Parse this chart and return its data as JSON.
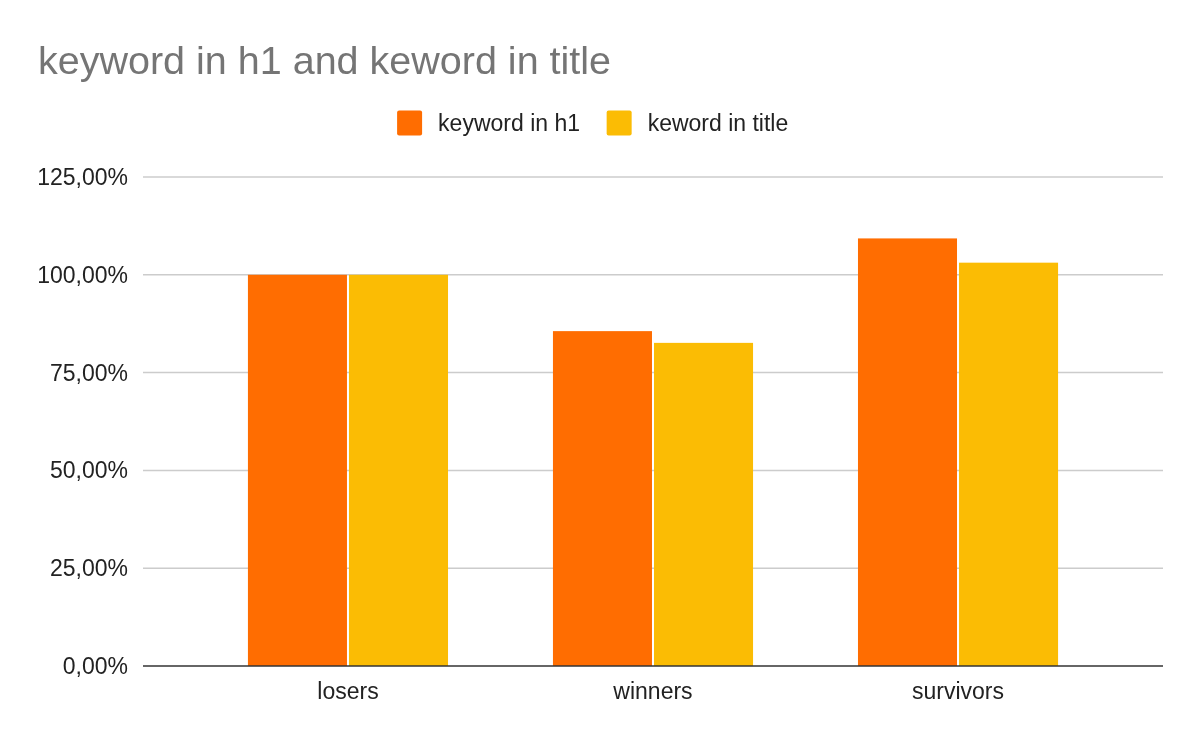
{
  "chart_data": {
    "type": "bar",
    "title": "keyword in h1 and keword in title",
    "categories": [
      "losers",
      "winners",
      "survivors"
    ],
    "series": [
      {
        "name": "keyword in h1",
        "color": "#ff6d01",
        "values": [
          100,
          85.6,
          109.3
        ]
      },
      {
        "name": "keword in title",
        "color": "#fbbc04",
        "values": [
          100,
          82.6,
          103.1
        ]
      }
    ],
    "ylim": [
      0,
      125
    ],
    "yticks": [
      {
        "value": 0,
        "label": "0,00%"
      },
      {
        "value": 25,
        "label": "25,00%"
      },
      {
        "value": 50,
        "label": "50,00%"
      },
      {
        "value": 75,
        "label": "75,00%"
      },
      {
        "value": 100,
        "label": "100,00%"
      },
      {
        "value": 125,
        "label": "125,00%"
      }
    ],
    "grid": "y",
    "legend": "top"
  }
}
